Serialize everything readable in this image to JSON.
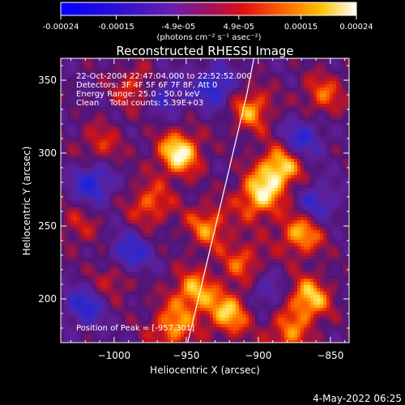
{
  "colorbar": {
    "ticks": [
      -0.00024,
      -0.00015,
      -4.9e-05,
      4.9e-05,
      0.00015,
      0.00024
    ],
    "tick_labels": [
      "-0.00024",
      "-0.00015",
      "-4.9e-05",
      "4.9e-05",
      "0.00015",
      "0.00024"
    ],
    "range": [
      -0.00024,
      0.00024
    ],
    "unit_label": "(photons cm⁻² s⁻¹ asec⁻²)",
    "colormap": "blue-purple-red-orange-yellow-white"
  },
  "timestamp": "4-May-2022 06:25",
  "chart_data": {
    "type": "heatmap",
    "title": "Reconstructed RHESSI Image",
    "xlabel": "Heliocentric X (arcsec)",
    "ylabel": "Heliocentric Y (arcsec)",
    "xlim": [
      -1037,
      -837
    ],
    "ylim": [
      170,
      365
    ],
    "x_ticks": [
      -1000,
      -950,
      -900,
      -850
    ],
    "x_tick_labels": [
      "−1000",
      "−950",
      "−900",
      "−850"
    ],
    "y_ticks": [
      200,
      250,
      300,
      350
    ],
    "y_tick_labels": [
      "200",
      "250",
      "300",
      "350"
    ],
    "annotations": [
      "22-Oct-2004 22:47:04.000 to 22:52:52.000",
      "Detectors: 3F 4F 5F 6F 7F 8F, Att 0",
      "Energy Range: 25.0 - 50.0 keV",
      "Clean    Total counts: 5.39E+03"
    ],
    "peak_label": "Position of Peak = [-957,301]",
    "peak": [
      -957,
      301
    ],
    "limb": [
      [
        -949,
        170
      ],
      [
        -944,
        190
      ],
      [
        -938,
        215
      ],
      [
        -932,
        240
      ],
      [
        -926,
        265
      ],
      [
        -920,
        290
      ],
      [
        -914,
        315
      ],
      [
        -908,
        340
      ],
      [
        -903,
        365
      ]
    ],
    "grid": false,
    "legend": "none",
    "bright_sources": [
      [
        -955,
        300,
        1.0
      ],
      [
        -885,
        290,
        0.95
      ],
      [
        -900,
        270,
        0.85
      ],
      [
        -905,
        330,
        0.7
      ],
      [
        -870,
        245,
        0.8
      ],
      [
        -935,
        250,
        0.65
      ],
      [
        -975,
        265,
        0.6
      ],
      [
        -945,
        205,
        0.75
      ],
      [
        -920,
        190,
        0.8
      ],
      [
        -865,
        200,
        0.85
      ],
      [
        -880,
        175,
        0.6
      ],
      [
        -985,
        345,
        0.5
      ],
      [
        -1010,
        305,
        0.45
      ],
      [
        -1000,
        215,
        0.5
      ],
      [
        -855,
        340,
        0.55
      ],
      [
        -910,
        225,
        0.55
      ],
      [
        -960,
        180,
        0.7
      ],
      [
        -1025,
        250,
        0.35
      ]
    ],
    "dim_regions": [
      [
        -1015,
        280,
        0.7
      ],
      [
        -990,
        230,
        0.7
      ],
      [
        -930,
        345,
        0.65
      ],
      [
        -870,
        310,
        0.6
      ],
      [
        -860,
        265,
        0.55
      ],
      [
        -1020,
        195,
        0.6
      ],
      [
        -965,
        340,
        0.5
      ],
      [
        -895,
        205,
        0.4
      ]
    ]
  }
}
